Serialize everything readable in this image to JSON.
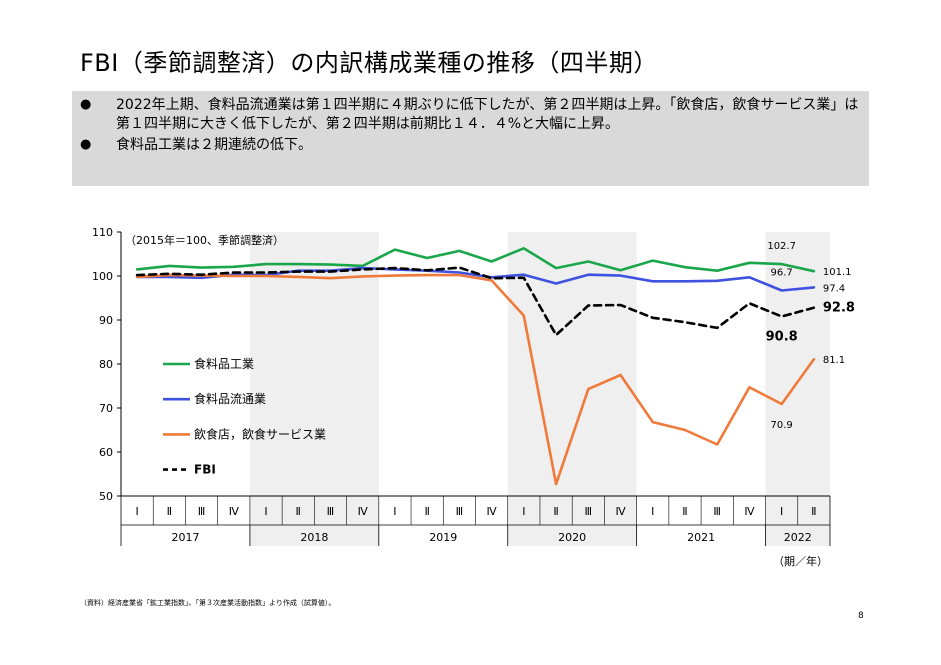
{
  "page": {
    "title": "FBI（季節調整済）の内訳構成業種の推移（四半期）",
    "bullets": [
      {
        "mark": "●",
        "text": "2022年上期、食料品流通業は第１四半期に４期ぶりに低下したが、第２四半期は上昇。「飲食店，飲食サービス業」は第１四半期に大きく低下したが、第２四半期は前期比１４．４%と大幅に上昇。"
      },
      {
        "mark": "●",
        "text": "食料品工業は２期連続の低下。"
      }
    ],
    "source": "（資料）経済産業省「鉱工業指数」、「第３次産業活動指数」より作成（試算値）。",
    "page_number": "8"
  },
  "chart_data": {
    "type": "line",
    "note": "（2015年＝100、季節調整済）",
    "x_unit": "（期／年）",
    "ylim": [
      50,
      110
    ],
    "yticks": [
      50,
      60,
      70,
      80,
      90,
      100,
      110
    ],
    "quarters": [
      "Ⅰ",
      "Ⅱ",
      "Ⅲ",
      "Ⅳ",
      "Ⅰ",
      "Ⅱ",
      "Ⅲ",
      "Ⅳ",
      "Ⅰ",
      "Ⅱ",
      "Ⅲ",
      "Ⅳ",
      "Ⅰ",
      "Ⅱ",
      "Ⅲ",
      "Ⅳ",
      "Ⅰ",
      "Ⅱ",
      "Ⅲ",
      "Ⅳ",
      "Ⅰ",
      "Ⅱ"
    ],
    "years": [
      {
        "label": "2017",
        "count": 4,
        "shaded": false
      },
      {
        "label": "2018",
        "count": 4,
        "shaded": true
      },
      {
        "label": "2019",
        "count": 4,
        "shaded": false
      },
      {
        "label": "2020",
        "count": 4,
        "shaded": true
      },
      {
        "label": "2021",
        "count": 4,
        "shaded": false
      },
      {
        "label": "2022",
        "count": 2,
        "shaded": true
      }
    ],
    "series": [
      {
        "name": "食料品工業",
        "color": "#1aa64a",
        "dash": false,
        "values": [
          101.5,
          102.3,
          101.9,
          102.1,
          102.7,
          102.7,
          102.6,
          102.3,
          106.0,
          104.1,
          105.7,
          103.3,
          106.3,
          101.8,
          103.3,
          101.3,
          103.5,
          102.0,
          101.2,
          103.0,
          102.7,
          101.1
        ]
      },
      {
        "name": "食料品流通業",
        "color": "#3f51e0",
        "dash": false,
        "values": [
          99.8,
          99.8,
          99.6,
          100.3,
          100.2,
          101.2,
          101.2,
          101.8,
          101.5,
          101.2,
          100.8,
          99.7,
          100.3,
          98.3,
          100.3,
          100.1,
          98.8,
          98.8,
          98.9,
          99.7,
          96.7,
          97.4
        ]
      },
      {
        "name": "飲食店，飲食サービス業",
        "color": "#f07a3a",
        "dash": false,
        "values": [
          99.8,
          100.2,
          100.1,
          100.0,
          100.0,
          99.8,
          99.5,
          99.9,
          100.1,
          100.2,
          100.2,
          99.0,
          91.0,
          52.7,
          74.3,
          77.5,
          66.8,
          65.0,
          61.7,
          74.7,
          70.9,
          81.1
        ]
      },
      {
        "name": "FBI",
        "color": "#000000",
        "dash": true,
        "values": [
          100.2,
          100.5,
          100.3,
          100.8,
          100.8,
          101.0,
          101.0,
          101.5,
          101.8,
          101.3,
          101.9,
          99.5,
          99.6,
          86.6,
          93.3,
          93.4,
          90.5,
          89.5,
          88.2,
          93.8,
          90.8,
          92.8
        ]
      }
    ],
    "data_labels": [
      {
        "series": 0,
        "index": 20,
        "text": "102.7",
        "pos": "above",
        "bold": false,
        "size": 10
      },
      {
        "series": 0,
        "index": 21,
        "text": "101.1",
        "pos": "right",
        "bold": false,
        "size": 10
      },
      {
        "series": 1,
        "index": 20,
        "text": "96.7",
        "pos": "above",
        "bold": false,
        "size": 10
      },
      {
        "series": 1,
        "index": 21,
        "text": "97.4",
        "pos": "right",
        "bold": false,
        "size": 10
      },
      {
        "series": 3,
        "index": 20,
        "text": "90.8",
        "pos": "below",
        "bold": true,
        "size": 13
      },
      {
        "series": 3,
        "index": 21,
        "text": "92.8",
        "pos": "right",
        "bold": true,
        "size": 13
      },
      {
        "series": 2,
        "index": 20,
        "text": "70.9",
        "pos": "below",
        "bold": false,
        "size": 10
      },
      {
        "series": 2,
        "index": 21,
        "text": "81.1",
        "pos": "right",
        "bold": false,
        "size": 10
      }
    ],
    "legend_position": "left-middle",
    "grid": false
  }
}
